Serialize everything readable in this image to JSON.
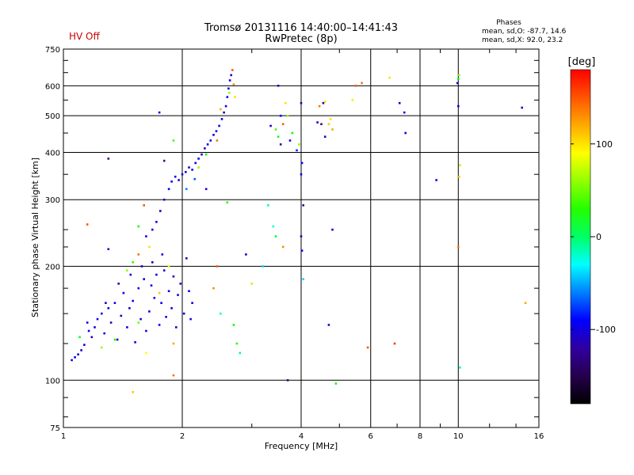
{
  "header": {
    "status": "HV Off",
    "status_color": "#cc0000",
    "title_line1": "Tromsø 20131116 14:40:00–14:41:43",
    "title_line2": "RwPretec (8p)",
    "stats_heading": "Phases",
    "stats_o": "mean, sd,O:  -87.7, 14.6",
    "stats_x": "mean, sd,X:   92.0, 23.2"
  },
  "chart_data": {
    "type": "scatter",
    "title": "Tromsø 20131116 14:40:00–14:41:43",
    "subtitle": "RwPretec (8p)",
    "xlabel": "Frequency [MHz]",
    "ylabel": "Stationary phase Virtual Height [km]",
    "x_scale": "log",
    "y_scale": "log",
    "xlim": [
      1,
      16
    ],
    "ylim": [
      75,
      750
    ],
    "x_ticks": [
      1,
      2,
      4,
      6,
      8,
      10,
      16
    ],
    "x_tick_labels": [
      "1",
      "2",
      "4",
      "6",
      "8",
      "10",
      "16"
    ],
    "y_ticks": [
      75,
      100,
      200,
      300,
      400,
      500,
      600,
      750
    ],
    "y_tick_labels": [
      "75",
      "100",
      "200",
      "300",
      "400",
      "500",
      "600",
      "750"
    ],
    "grid": true,
    "colorbar": {
      "label": "[deg]",
      "range": [
        -180,
        180
      ],
      "tick_values": [
        100,
        0,
        -100
      ],
      "tick_labels": [
        "100",
        "0",
        "-100"
      ],
      "colors": [
        "#ff0000",
        "#ff8000",
        "#ffff00",
        "#00ff00",
        "#00ffff",
        "#0000ff",
        "#400080",
        "#000000"
      ]
    },
    "points": [
      [
        1.05,
        113,
        -105
      ],
      [
        1.07,
        115,
        -95
      ],
      [
        1.09,
        117,
        -100
      ],
      [
        1.11,
        120,
        -110
      ],
      [
        1.13,
        124,
        -98
      ],
      [
        1.15,
        142,
        -100
      ],
      [
        1.16,
        135,
        -95
      ],
      [
        1.18,
        130,
        -115
      ],
      [
        1.2,
        138,
        -100
      ],
      [
        1.22,
        145,
        -90
      ],
      [
        1.25,
        150,
        -105
      ],
      [
        1.27,
        133,
        -100
      ],
      [
        1.3,
        155,
        -95
      ],
      [
        1.32,
        142,
        -120
      ],
      [
        1.35,
        160,
        -100
      ],
      [
        1.37,
        128,
        -98
      ],
      [
        1.4,
        148,
        -105
      ],
      [
        1.42,
        170,
        -100
      ],
      [
        1.45,
        138,
        -92
      ],
      [
        1.47,
        155,
        -110
      ],
      [
        1.5,
        162,
        -100
      ],
      [
        1.52,
        126,
        -95
      ],
      [
        1.55,
        175,
        -105
      ],
      [
        1.57,
        145,
        -100
      ],
      [
        1.6,
        185,
        -98
      ],
      [
        1.62,
        135,
        -110
      ],
      [
        1.65,
        152,
        -100
      ],
      [
        1.67,
        178,
        -95
      ],
      [
        1.7,
        165,
        -105
      ],
      [
        1.72,
        190,
        -100
      ],
      [
        1.75,
        140,
        -92
      ],
      [
        1.77,
        160,
        -100
      ],
      [
        1.8,
        195,
        -108
      ],
      [
        1.82,
        147,
        -100
      ],
      [
        1.85,
        172,
        -96
      ],
      [
        1.88,
        155,
        -104
      ],
      [
        1.9,
        188,
        -100
      ],
      [
        1.93,
        138,
        -110
      ],
      [
        1.95,
        168,
        -100
      ],
      [
        1.98,
        180,
        -98
      ],
      [
        2.02,
        150,
        -100
      ],
      [
        2.05,
        210,
        -105
      ],
      [
        2.08,
        172,
        -95
      ],
      [
        2.1,
        145,
        -100
      ],
      [
        2.12,
        160,
        -102
      ],
      [
        1.28,
        160,
        -100
      ],
      [
        1.38,
        180,
        -104
      ],
      [
        1.48,
        190,
        -98
      ],
      [
        1.58,
        200,
        -100
      ],
      [
        1.68,
        205,
        -106
      ],
      [
        1.78,
        215,
        -100
      ],
      [
        1.25,
        122,
        60
      ],
      [
        1.35,
        128,
        30
      ],
      [
        1.62,
        118,
        90
      ],
      [
        1.9,
        125,
        120
      ],
      [
        1.55,
        142,
        50
      ],
      [
        1.75,
        170,
        110
      ],
      [
        1.85,
        200,
        80
      ],
      [
        1.65,
        225,
        100
      ],
      [
        1.55,
        215,
        140
      ],
      [
        1.5,
        205,
        30
      ],
      [
        1.45,
        195,
        60
      ],
      [
        1.62,
        240,
        -100
      ],
      [
        1.68,
        250,
        -104
      ],
      [
        1.72,
        262,
        -98
      ],
      [
        1.76,
        280,
        -100
      ],
      [
        1.8,
        300,
        -102
      ],
      [
        1.85,
        320,
        -96
      ],
      [
        1.88,
        335,
        -100
      ],
      [
        1.92,
        345,
        -104
      ],
      [
        1.96,
        338,
        -100
      ],
      [
        2.0,
        350,
        -98
      ],
      [
        2.04,
        355,
        -100
      ],
      [
        2.08,
        365,
        -106
      ],
      [
        2.12,
        360,
        -100
      ],
      [
        2.16,
        375,
        -95
      ],
      [
        2.2,
        385,
        -100
      ],
      [
        2.24,
        395,
        -105
      ],
      [
        2.28,
        410,
        -100
      ],
      [
        2.32,
        420,
        -98
      ],
      [
        2.36,
        430,
        -100
      ],
      [
        2.4,
        445,
        -104
      ],
      [
        2.44,
        455,
        -100
      ],
      [
        2.48,
        470,
        -96
      ],
      [
        2.52,
        490,
        -100
      ],
      [
        2.55,
        510,
        -105
      ],
      [
        2.58,
        530,
        -100
      ],
      [
        2.6,
        560,
        -98
      ],
      [
        2.62,
        590,
        -100
      ],
      [
        2.64,
        620,
        -102
      ],
      [
        2.66,
        640,
        -96
      ],
      [
        2.68,
        660,
        150
      ],
      [
        2.7,
        605,
        130
      ],
      [
        2.72,
        560,
        100
      ],
      [
        2.63,
        575,
        60
      ],
      [
        2.5,
        520,
        120
      ],
      [
        2.45,
        430,
        140
      ],
      [
        2.3,
        395,
        20
      ],
      [
        2.2,
        365,
        60
      ],
      [
        2.15,
        340,
        -70
      ],
      [
        2.05,
        320,
        -60
      ],
      [
        1.8,
        380,
        -130
      ],
      [
        1.75,
        510,
        -100
      ],
      [
        1.3,
        385,
        -130
      ],
      [
        1.9,
        430,
        40
      ],
      [
        1.55,
        255,
        20
      ],
      [
        1.6,
        290,
        150
      ],
      [
        1.3,
        222,
        -100
      ],
      [
        1.15,
        258,
        150
      ],
      [
        1.1,
        130,
        10
      ],
      [
        2.3,
        320,
        -110
      ],
      [
        2.45,
        200,
        150
      ],
      [
        2.4,
        175,
        130
      ],
      [
        2.5,
        150,
        -20
      ],
      [
        2.7,
        140,
        20
      ],
      [
        2.75,
        125,
        30
      ],
      [
        2.8,
        118,
        -5
      ],
      [
        3.0,
        180,
        70
      ],
      [
        3.2,
        200,
        -40
      ],
      [
        3.3,
        290,
        -15
      ],
      [
        3.35,
        470,
        -100
      ],
      [
        3.45,
        460,
        40
      ],
      [
        3.5,
        440,
        10
      ],
      [
        3.55,
        420,
        -130
      ],
      [
        3.6,
        475,
        150
      ],
      [
        3.65,
        540,
        100
      ],
      [
        3.7,
        500,
        60
      ],
      [
        3.75,
        430,
        -100
      ],
      [
        3.8,
        450,
        20
      ],
      [
        3.9,
        405,
        -80
      ],
      [
        3.95,
        420,
        60
      ],
      [
        4.0,
        350,
        -100
      ],
      [
        4.02,
        375,
        -90
      ],
      [
        4.05,
        290,
        -120
      ],
      [
        4.0,
        240,
        -110
      ],
      [
        4.02,
        220,
        -100
      ],
      [
        4.05,
        185,
        -40
      ],
      [
        4.0,
        540,
        -110
      ],
      [
        3.4,
        255,
        -20
      ],
      [
        3.5,
        600,
        -100
      ],
      [
        3.55,
        500,
        -100
      ],
      [
        3.45,
        240,
        10
      ],
      [
        3.6,
        225,
        130
      ],
      [
        4.4,
        480,
        -100
      ],
      [
        4.5,
        475,
        -130
      ],
      [
        4.6,
        440,
        -110
      ],
      [
        4.7,
        475,
        110
      ],
      [
        4.75,
        490,
        100
      ],
      [
        4.8,
        460,
        120
      ],
      [
        4.6,
        545,
        100
      ],
      [
        4.55,
        540,
        -120
      ],
      [
        4.45,
        530,
        140
      ],
      [
        4.8,
        250,
        -100
      ],
      [
        4.7,
        140,
        -110
      ],
      [
        4.9,
        98,
        20
      ],
      [
        5.5,
        600,
        150
      ],
      [
        5.7,
        610,
        140
      ],
      [
        5.4,
        550,
        80
      ],
      [
        5.9,
        122,
        150
      ],
      [
        6.7,
        630,
        100
      ],
      [
        6.9,
        125,
        160
      ],
      [
        7.1,
        540,
        -100
      ],
      [
        7.3,
        510,
        -90
      ],
      [
        7.35,
        450,
        -100
      ],
      [
        8.8,
        338,
        -100
      ],
      [
        10.0,
        625,
        20
      ],
      [
        10.05,
        640,
        60
      ],
      [
        9.95,
        610,
        -100
      ],
      [
        10.0,
        530,
        -95
      ],
      [
        10.1,
        370,
        70
      ],
      [
        10.05,
        345,
        110
      ],
      [
        10.0,
        225,
        140
      ],
      [
        10.1,
        108,
        -20
      ],
      [
        14.5,
        525,
        -100
      ],
      [
        14.8,
        160,
        120
      ],
      [
        1.5,
        93,
        110
      ],
      [
        1.9,
        103,
        140
      ],
      [
        3.7,
        100,
        -130
      ],
      [
        2.6,
        295,
        30
      ],
      [
        2.9,
        215,
        -110
      ]
    ]
  }
}
